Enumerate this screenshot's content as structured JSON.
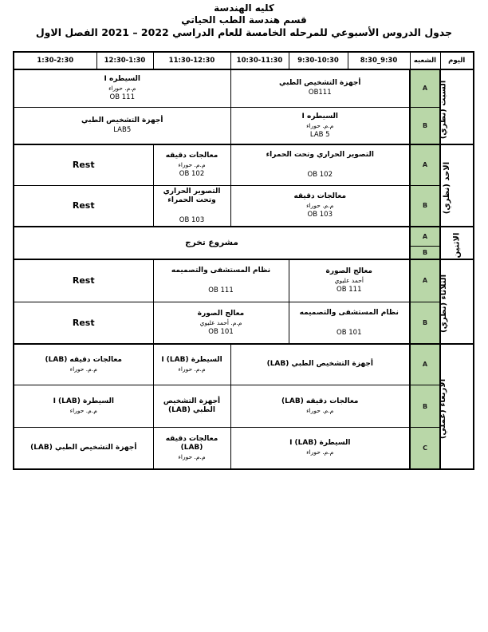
{
  "document": {
    "college_title": "كليه الهندسة",
    "department_title": "قسم هندسة الطب الحياتي",
    "schedule_title_prefix": "جدول الدروس الأسبوعي للمرحله الخامسة للعام الدراسي",
    "schedule_title_years": "2021 – 2022",
    "schedule_title_suffix": "الفصل الاول"
  },
  "table": {
    "colors": {
      "section_fill": "#b9d7a8",
      "border": "#000000",
      "background": "#ffffff"
    },
    "headers": {
      "day": "اليوم",
      "section": "الشعبه",
      "times": [
        "8:30_9:30",
        "9:30-10:30",
        "10:30-11:30",
        "11:30-12:30",
        "12:30-1:30",
        "1:30-2:30"
      ]
    },
    "days": [
      {
        "label": "السبت (نظري)",
        "rows": [
          {
            "section": "A",
            "cells": [
              {
                "lines": [
                  "أجهزة التشخيص الطبي",
                  "OB111"
                ]
              },
              {
                "lines": [
                  "السيطره I",
                  "م.م. حوراء",
                  "OB 111"
                ]
              }
            ]
          },
          {
            "section": "B",
            "cells": [
              {
                "lines": [
                  "السيطره I",
                  "م.م. حوراء",
                  "LAB 5"
                ]
              },
              {
                "lines": [
                  "أجهزة التشخيص الطبي",
                  "LAB5"
                ]
              }
            ]
          }
        ]
      },
      {
        "label": "الاحد (نظري)",
        "rows": [
          {
            "section": "A",
            "cells": [
              {
                "lines": [
                  "التصوير الحراري وتحت الحمراء",
                  "",
                  "OB 102"
                ]
              },
              {
                "lines": [
                  "معالجات دقيقه",
                  "م.م. حوراء",
                  "OB 102"
                ]
              },
              {
                "lines": [
                  "Rest"
                ]
              }
            ]
          },
          {
            "section": "B",
            "cells": [
              {
                "lines": [
                  "معالجات دقيقه",
                  "م.م. حوراء",
                  "OB 103"
                ]
              },
              {
                "lines": [
                  "التصوير الحراري وتحت الحمراء",
                  "",
                  "OB 103"
                ]
              },
              {
                "lines": [
                  "Rest"
                ]
              }
            ]
          }
        ]
      },
      {
        "label": "الاثنين",
        "rows": [
          {
            "section": "A",
            "cells": [
              {
                "lines": [
                  "مشروع تخرج"
                ]
              }
            ]
          },
          {
            "section": "B",
            "cells": []
          }
        ]
      },
      {
        "label": "الثلاثاء (نظري)",
        "rows": [
          {
            "section": "A",
            "cells": [
              {
                "lines": [
                  "معالج الصورة",
                  "أحمد عليوي",
                  "OB 111"
                ]
              },
              {
                "lines": [
                  "نظام المستشفى والتصميمه",
                  "",
                  "OB 111"
                ]
              },
              {
                "lines": [
                  "Rest"
                ]
              }
            ]
          },
          {
            "section": "B",
            "cells": [
              {
                "lines": [
                  "نظام المستشفى والتصميمه",
                  "",
                  "OB 101"
                ]
              },
              {
                "lines": [
                  "معالج الصورة",
                  "م.م. أحمد عليوي",
                  "OB 101"
                ]
              },
              {
                "lines": [
                  "Rest"
                ]
              }
            ]
          }
        ]
      },
      {
        "label": "الأربعاء (عملي)",
        "rows": [
          {
            "section": "A",
            "cells": [
              {
                "lines": [
                  "أجهزة التشخيص الطبي (LAB)"
                ]
              },
              {
                "lines": [
                  "السيطرة I (LAB)",
                  "م.م. حوراء"
                ]
              },
              {
                "lines": [
                  "معالجات دقيقه (LAB)",
                  "م.م. حوراء"
                ]
              }
            ]
          },
          {
            "section": "B",
            "cells": [
              {
                "lines": [
                  "معالجات دقيقه (LAB)",
                  "م.م. حوراء"
                ]
              },
              {
                "lines": [
                  "أجهزة التشخيص الطبي (LAB)"
                ]
              },
              {
                "lines": [
                  "السيطرة I (LAB)",
                  "م.م. حوراء"
                ]
              }
            ]
          },
          {
            "section": "C",
            "cells": [
              {
                "lines": [
                  "السيطرة I (LAB)",
                  "م.م. حوراء"
                ]
              },
              {
                "lines": [
                  "معالجات دقيقه (LAB)",
                  "م.م. حوراء"
                ]
              },
              {
                "lines": [
                  "أجهزة التشخيص الطبي (LAB)"
                ]
              }
            ]
          }
        ]
      }
    ]
  }
}
